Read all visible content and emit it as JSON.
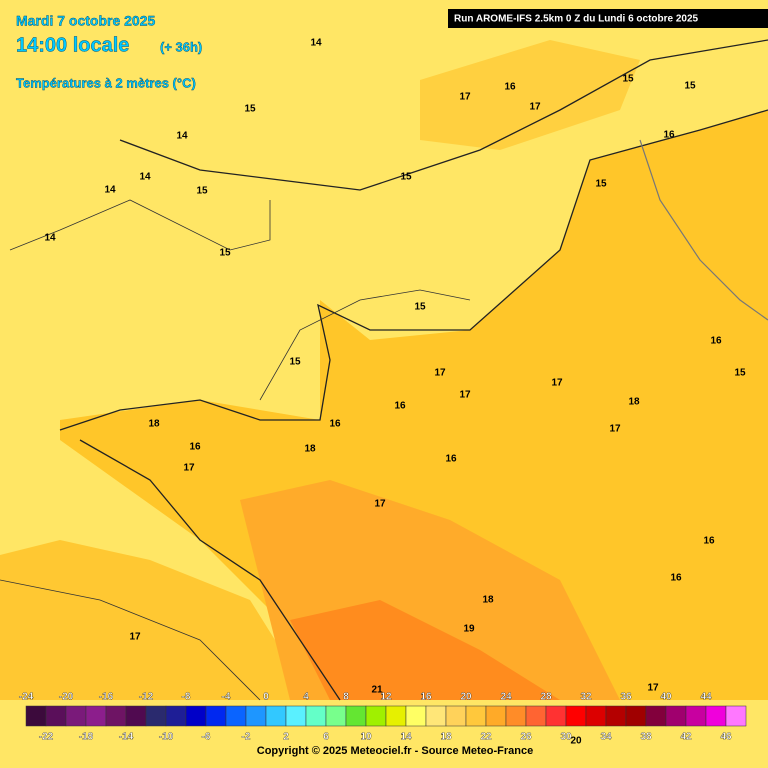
{
  "header": {
    "date": "Mardi 7 octobre 2025",
    "time": "14:00 locale",
    "lead": "(+ 36h)",
    "variable": "Températures à 2 mètres (°C)"
  },
  "run": "Run AROME-IFS 2.5km 0 Z du Lundi 6 octobre 2025",
  "isotherm_labels": [
    14,
    15,
    14,
    14,
    14,
    15,
    14,
    15,
    15,
    17,
    16,
    17,
    15,
    15,
    16,
    15,
    15,
    15,
    17,
    17,
    17,
    18,
    16,
    15,
    16,
    18,
    16,
    17,
    18,
    16,
    16,
    17,
    17,
    16,
    16,
    18,
    19,
    17,
    21,
    20,
    17
  ],
  "scale": {
    "values": [
      -24,
      -22,
      -20,
      -18,
      -16,
      -14,
      -12,
      -10,
      -8,
      -6,
      -4,
      -2,
      0,
      2,
      4,
      6,
      8,
      10,
      12,
      14,
      16,
      18,
      20,
      22,
      24,
      26,
      28,
      30,
      32,
      34,
      36,
      38,
      40,
      42,
      44,
      46
    ],
    "colors": [
      "#3c0a3c",
      "#5a0f5a",
      "#7a1a7a",
      "#8c1e8c",
      "#6e1464",
      "#500a50",
      "#2a2a6e",
      "#1e1e96",
      "#0000c8",
      "#0028f0",
      "#0a64ff",
      "#1e96ff",
      "#32c8ff",
      "#5af0ff",
      "#64ffc8",
      "#78ff8c",
      "#64e632",
      "#a0f000",
      "#e6f000",
      "#ffff64",
      "#ffe678",
      "#ffd25a",
      "#ffc83c",
      "#ffaa28",
      "#ff8c28",
      "#ff6432",
      "#ff3232",
      "#ff0000",
      "#dc0000",
      "#b40000",
      "#a00000",
      "#82003c",
      "#a0006e",
      "#c800a0",
      "#f000dc",
      "#ff78ff"
    ]
  },
  "copyright": "Copyright © 2025 Meteociel.fr - Source Meteo-France"
}
